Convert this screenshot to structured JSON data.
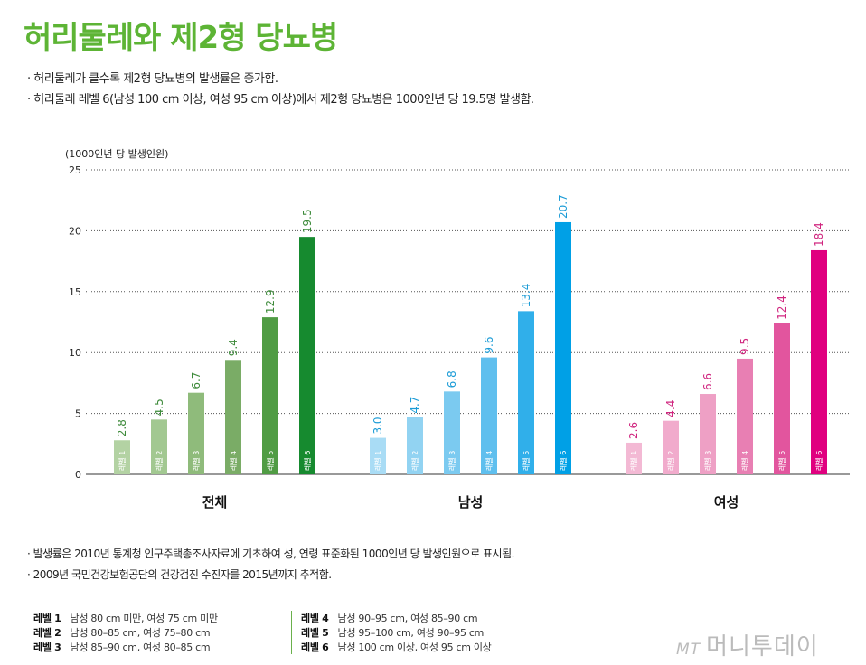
{
  "title": "허리둘레와 제2형 당뇨병",
  "summary": [
    "· 허리둘레가 클수록 제2형 당뇨병의 발생률은 증가함.",
    "· 허리둘레 레벨 6(남성 100 cm 이상, 여성 95 cm 이상)에서 제2형 당뇨병은 1000인년 당 19.5명 발생함."
  ],
  "notes": [
    "· 발생률은 2010년 통계청 인구주택총조사자료에 기초하여 성, 연령 표준화된 1000인년 당 발생인원으로 표시됨.",
    "· 2009년 국민건강보험공단의 건강검진 수진자를 2015년까지 추적함."
  ],
  "legend": [
    {
      "level": "레벨 1",
      "desc": "남성 80 cm 미만, 여성 75 cm 미만"
    },
    {
      "level": "레벨 2",
      "desc": "남성 80–85 cm, 여성 75–80 cm"
    },
    {
      "level": "레벨 3",
      "desc": "남성 85–90 cm, 여성 80–85 cm"
    },
    {
      "level": "레벨 4",
      "desc": "남성 90–95 cm, 여성 85–90 cm"
    },
    {
      "level": "레벨 5",
      "desc": "남성 95–100 cm, 여성 90–95 cm"
    },
    {
      "level": "레벨 6",
      "desc": "남성 100 cm 이상, 여성 95 cm 이상"
    }
  ],
  "logo": {
    "mark": "MT",
    "text": "머니투데이"
  },
  "chart_data": {
    "type": "bar",
    "ylabel": "(1000인년 당 발생인원)",
    "ylim": [
      0,
      25
    ],
    "yticks": [
      0,
      5,
      10,
      15,
      20,
      25
    ],
    "grid": true,
    "categories": [
      "레벨 1",
      "레벨 2",
      "레벨 3",
      "레벨 4",
      "레벨 5",
      "레벨 6"
    ],
    "groups": [
      {
        "name": "전체",
        "values": [
          2.8,
          4.5,
          6.7,
          9.4,
          12.9,
          19.5
        ],
        "colors": [
          "#b3d2a3",
          "#a2c891",
          "#8fbb7b",
          "#7aac66",
          "#509c44",
          "#168a2f"
        ],
        "label_color": "#3d8a3a"
      },
      {
        "name": "남성",
        "values": [
          3.0,
          4.7,
          6.8,
          9.6,
          13.4,
          20.7
        ],
        "colors": [
          "#a9dcf5",
          "#92d3f2",
          "#7bcaf0",
          "#5fbfee",
          "#30afea",
          "#00a0e6"
        ],
        "label_color": "#1a9bd6"
      },
      {
        "name": "여성",
        "values": [
          2.6,
          4.4,
          6.6,
          9.5,
          12.4,
          18.4
        ],
        "colors": [
          "#f3b9d4",
          "#f1abcc",
          "#eea0c5",
          "#e87fb3",
          "#e2559e",
          "#e0007f"
        ],
        "label_color": "#d0267f"
      }
    ]
  }
}
